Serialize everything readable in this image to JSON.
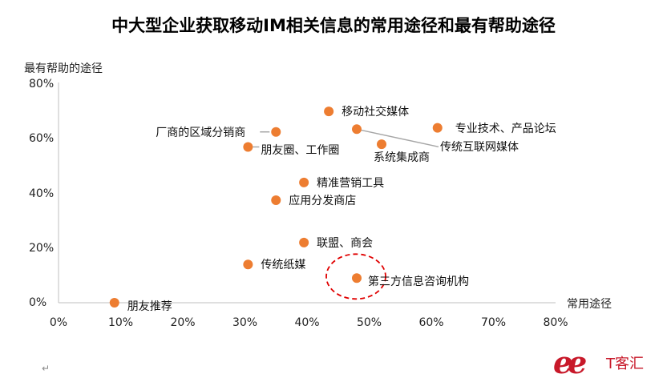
{
  "chart_data": {
    "type": "scatter",
    "title": "中大型企业获取移动IM相关信息的常用途径和最有帮助途径",
    "xlabel": "常用途径",
    "ylabel": "最有帮助的途径",
    "xlim": [
      0,
      80
    ],
    "ylim": [
      0,
      80
    ],
    "x_ticks": [
      "0%",
      "10%",
      "20%",
      "30%",
      "40%",
      "50%",
      "60%",
      "70%",
      "80%"
    ],
    "y_ticks": [
      "0%",
      "20%",
      "40%",
      "60%",
      "80%"
    ],
    "grid": false,
    "point_color": "#ed7d31",
    "highlight_color": "#e00000",
    "points": [
      {
        "label": "移动社交媒体",
        "x": 43.5,
        "y": 70
      },
      {
        "label": "厂商的区域分销商",
        "x": 35,
        "y": 62.5
      },
      {
        "label": "专业技术、产品论坛",
        "x": 61,
        "y": 64
      },
      {
        "label": "传统互联网媒体",
        "x": 48,
        "y": 63.5
      },
      {
        "label": "系统集成商",
        "x": 52,
        "y": 58
      },
      {
        "label": "朋友圈、工作圈",
        "x": 30.5,
        "y": 57
      },
      {
        "label": "精准营销工具",
        "x": 39.5,
        "y": 44
      },
      {
        "label": "应用分发商店",
        "x": 35,
        "y": 37.5
      },
      {
        "label": "联盟、商会",
        "x": 39.5,
        "y": 22
      },
      {
        "label": "传统纸媒",
        "x": 30.5,
        "y": 14
      },
      {
        "label": "第三方信息咨询机构",
        "x": 48,
        "y": 9,
        "highlight": true
      },
      {
        "label": "朋友推荐",
        "x": 9,
        "y": 0
      }
    ]
  },
  "brand": {
    "mark": "ee",
    "name": "T客汇"
  }
}
